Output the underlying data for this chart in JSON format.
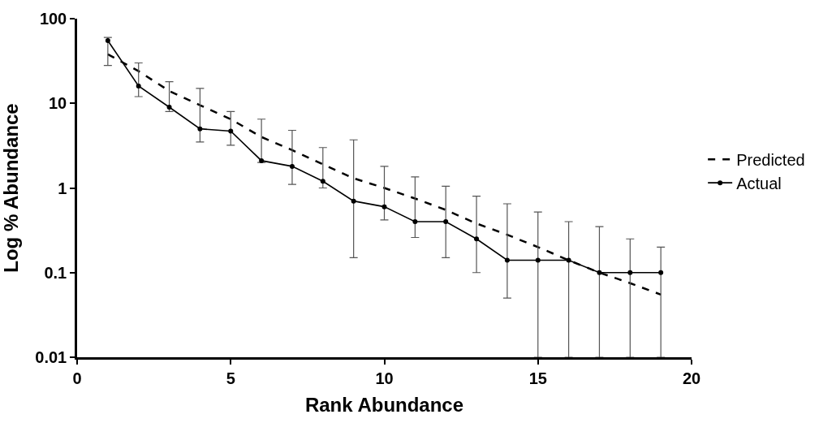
{
  "chart_data": {
    "type": "line",
    "xlabel": "Rank Abundance",
    "ylabel": "Log % Abundance",
    "log": "y",
    "xlim": [
      0,
      20
    ],
    "xticks": [
      0,
      5,
      10,
      15,
      20
    ],
    "ylim": [
      0.01,
      100
    ],
    "yticks": [
      0.01,
      0.1,
      1,
      10,
      100
    ],
    "legend": "right",
    "series": [
      {
        "name": "Predicted",
        "color": "#000000",
        "line_style": "dashed",
        "marker": "none",
        "x": [
          1,
          2,
          3,
          4,
          5,
          6,
          7,
          8,
          9,
          10,
          11,
          12,
          13,
          14,
          15,
          16,
          17,
          18,
          19
        ],
        "values": [
          38,
          24,
          14,
          9.5,
          6.5,
          4,
          2.8,
          1.9,
          1.3,
          1,
          0.75,
          0.55,
          0.38,
          0.28,
          0.2,
          0.14,
          0.1,
          0.075,
          0.055
        ]
      },
      {
        "name": "Actual",
        "color": "#000000",
        "line_style": "solid",
        "marker": "circle",
        "x": [
          1,
          2,
          3,
          4,
          5,
          6,
          7,
          8,
          9,
          10,
          11,
          12,
          13,
          14,
          15,
          16,
          17,
          18,
          19
        ],
        "values": [
          55,
          16,
          9,
          5,
          4.7,
          2.1,
          1.8,
          1.2,
          0.7,
          0.6,
          0.4,
          0.4,
          0.25,
          0.14,
          0.14,
          0.14,
          0.1,
          0.1,
          0.1
        ],
        "errors": [
          [
            28,
            60
          ],
          [
            12,
            30
          ],
          [
            8,
            18
          ],
          [
            3.5,
            15
          ],
          [
            3.2,
            8
          ],
          [
            2,
            6.5
          ],
          [
            1.1,
            4.8
          ],
          [
            1,
            3
          ],
          [
            0.15,
            3.7
          ],
          [
            0.42,
            1.8
          ],
          [
            0.26,
            1.35
          ],
          [
            0.15,
            1.05
          ],
          [
            0.1,
            0.8
          ],
          [
            0.05,
            0.65
          ],
          [
            0.01,
            0.52
          ],
          [
            0.01,
            0.4
          ],
          [
            0.01,
            0.35
          ],
          [
            0.01,
            0.25
          ],
          [
            0.01,
            0.2
          ]
        ]
      }
    ]
  }
}
